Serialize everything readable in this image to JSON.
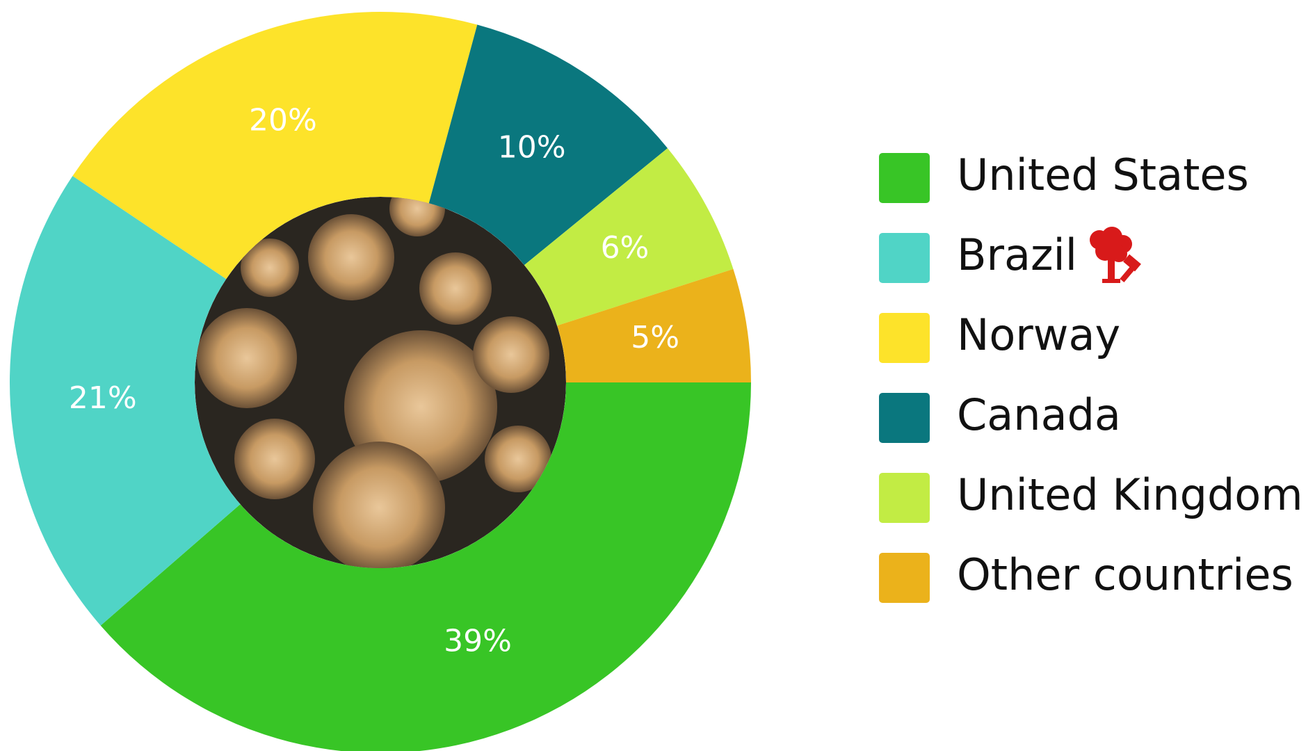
{
  "chart_data": {
    "type": "donut",
    "categories": [
      "United States",
      "Brazil",
      "Norway",
      "Canada",
      "United Kingdom",
      "Other countries"
    ],
    "values": [
      39,
      21,
      20,
      10,
      6,
      5
    ],
    "value_labels": [
      "39%",
      "21%",
      "20%",
      "10%",
      "6%",
      "5%"
    ],
    "colors": [
      "#38c526",
      "#50d4c6",
      "#fde32a",
      "#0a777e",
      "#c2ec44",
      "#ebb21b"
    ],
    "legend": "right"
  }
}
